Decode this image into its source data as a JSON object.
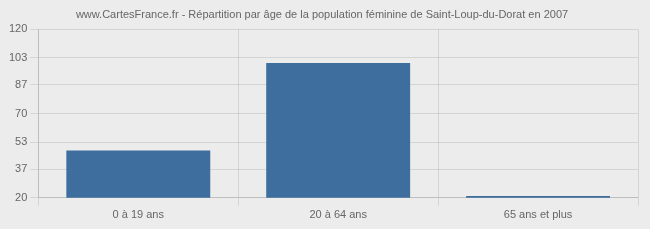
{
  "chart_data": {
    "type": "bar",
    "title": "www.CartesFrance.fr - Répartition par âge de la population féminine de Saint-Loup-du-Dorat en 2007",
    "categories": [
      "0 à 19 ans",
      "20 à 64 ans",
      "65 ans et plus"
    ],
    "values": [
      48,
      100,
      21
    ],
    "color": "#3d6e9e",
    "ylim": [
      20,
      120
    ],
    "yticks": [
      20,
      37,
      53,
      70,
      87,
      103,
      120
    ],
    "grid": true
  }
}
